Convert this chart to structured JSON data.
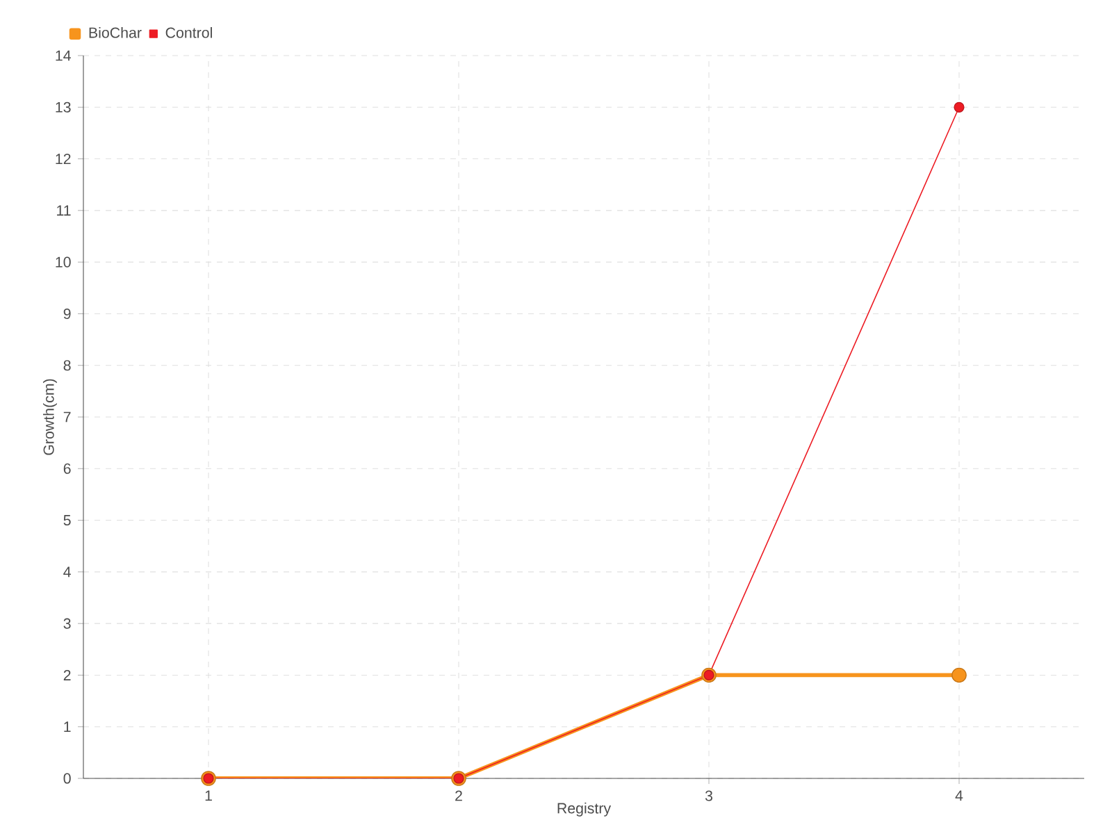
{
  "chart_data": {
    "type": "line",
    "xlabel": "Registry",
    "ylabel": "Growth(cm)",
    "x": [
      1,
      2,
      3,
      4
    ],
    "xlim": [
      0.5,
      4.5
    ],
    "xticks": [
      1,
      2,
      3,
      4
    ],
    "ylim": [
      0,
      14
    ],
    "yticks": [
      0,
      1,
      2,
      3,
      4,
      5,
      6,
      7,
      8,
      9,
      10,
      11,
      12,
      13,
      14
    ],
    "series": [
      {
        "name": "BioChar",
        "color": "#f7941d",
        "values": [
          0,
          0,
          2,
          2
        ]
      },
      {
        "name": "Control",
        "color": "#ed1c24",
        "values": [
          0,
          0,
          2,
          13
        ]
      }
    ],
    "grid": true,
    "legend": "top left",
    "marker": "circle",
    "line_style": "solid"
  }
}
